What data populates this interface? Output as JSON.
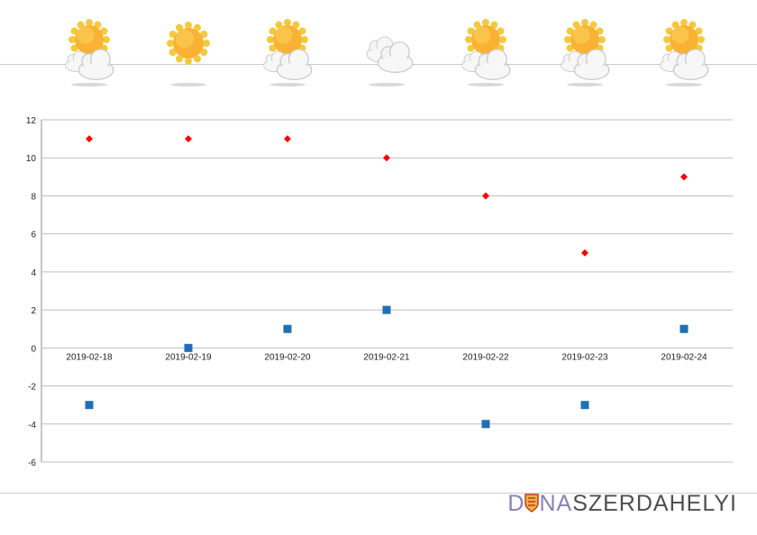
{
  "forecast_icons": [
    {
      "date": "2019-02-18",
      "icon": "sun-cloud-icon"
    },
    {
      "date": "2019-02-19",
      "icon": "sun-icon"
    },
    {
      "date": "2019-02-20",
      "icon": "sun-cloud-icon"
    },
    {
      "date": "2019-02-21",
      "icon": "cloud-icon"
    },
    {
      "date": "2019-02-22",
      "icon": "sun-cloud-icon"
    },
    {
      "date": "2019-02-23",
      "icon": "sun-cloud-icon"
    },
    {
      "date": "2019-02-24",
      "icon": "sun-cloud-icon"
    }
  ],
  "chart_data": {
    "type": "scatter",
    "categories": [
      "2019-02-18",
      "2019-02-19",
      "2019-02-20",
      "2019-02-21",
      "2019-02-22",
      "2019-02-23",
      "2019-02-24"
    ],
    "series": [
      {
        "marker": "diamond",
        "color": "#ff0000",
        "values": [
          11,
          11,
          11,
          10,
          8,
          5,
          9
        ]
      },
      {
        "marker": "square",
        "color": "#1f6fb5",
        "values": [
          -3,
          0,
          1,
          2,
          -4,
          -3,
          1
        ]
      }
    ],
    "ylim": [
      -6,
      12
    ],
    "yticks": [
      "12",
      "10",
      "8",
      "6",
      "4",
      "2",
      "0",
      "-2",
      "-4",
      "-6"
    ],
    "grid": true,
    "legend": "none",
    "title": "",
    "xlabel": "",
    "ylabel": ""
  },
  "logo": {
    "part1": "D",
    "part2": "NA",
    "part3": "SZERDAHELYI"
  },
  "colors": {
    "grid": "#bfbfbf",
    "axis": "#8c8c8c",
    "logo_purple": "#8a80b8",
    "logo_gray": "#4f4f4f"
  }
}
